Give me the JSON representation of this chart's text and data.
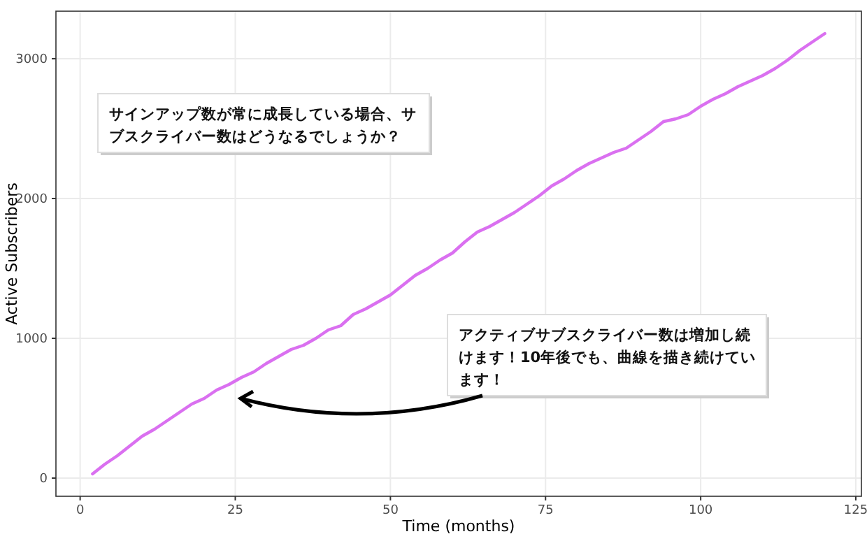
{
  "chart_data": {
    "type": "line",
    "xlabel": "Time (months)",
    "ylabel": "Active Subscribers",
    "x": [
      2,
      4,
      6,
      8,
      10,
      12,
      14,
      16,
      18,
      20,
      22,
      24,
      26,
      28,
      30,
      32,
      34,
      36,
      38,
      40,
      42,
      44,
      46,
      48,
      50,
      52,
      54,
      56,
      58,
      60,
      62,
      64,
      66,
      68,
      70,
      72,
      74,
      76,
      78,
      80,
      82,
      84,
      86,
      88,
      90,
      92,
      94,
      96,
      98,
      100,
      102,
      104,
      106,
      108,
      110,
      112,
      114,
      116,
      118,
      120
    ],
    "series": [
      {
        "color": "#da70f0",
        "values": [
          30,
          100,
          160,
          230,
          300,
          350,
          410,
          470,
          530,
          570,
          630,
          670,
          720,
          760,
          820,
          870,
          920,
          950,
          1000,
          1060,
          1090,
          1170,
          1210,
          1260,
          1310,
          1380,
          1450,
          1500,
          1560,
          1610,
          1690,
          1760,
          1800,
          1850,
          1900,
          1960,
          2020,
          2090,
          2140,
          2200,
          2250,
          2290,
          2330,
          2360,
          2420,
          2480,
          2550,
          2570,
          2600,
          2660,
          2710,
          2750,
          2800,
          2840,
          2880,
          2930,
          2990,
          3060,
          3120,
          3180
        ]
      }
    ],
    "xlim": [
      -3.9,
      125.9
    ],
    "ylim": [
      -130,
      3340
    ],
    "xticks": [
      0,
      25,
      50,
      75,
      100,
      125
    ],
    "yticks": [
      0,
      1000,
      2000,
      3000
    ],
    "grid": true,
    "marker": "none",
    "line_style": "solid",
    "annotations": [
      "サインアップ数が常に成長している場合、サブスクライバー数はどうなるでしょうか？",
      "アクティブサブスクライバー数は増加し続けます！10年後でも、曲線を描き続けています！"
    ]
  }
}
